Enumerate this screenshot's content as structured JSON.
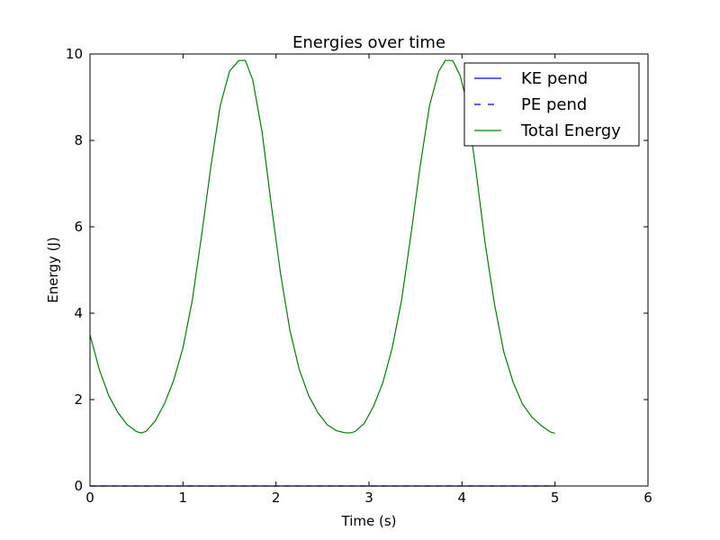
{
  "chart_data": {
    "type": "line",
    "title": "Energies over time",
    "xlabel": "Time (s)",
    "ylabel": "Energy (J)",
    "xlim": [
      0,
      6
    ],
    "ylim": [
      0,
      10
    ],
    "xticks": [
      "0",
      "1",
      "2",
      "3",
      "4",
      "5",
      "6"
    ],
    "yticks": [
      "0",
      "2",
      "4",
      "6",
      "8",
      "10"
    ],
    "grid": false,
    "legend_position": "top-right",
    "series": [
      {
        "name": "KE pend",
        "color": "#0000ff",
        "dash": "solid",
        "x": [
          0,
          5
        ],
        "y": [
          0,
          0
        ]
      },
      {
        "name": "PE pend",
        "color": "#0000ff",
        "dash": "dashed",
        "x": [
          0,
          5
        ],
        "y": [
          0,
          0
        ]
      },
      {
        "name": "Total Energy",
        "color": "#008000",
        "dash": "solid",
        "x": [
          0,
          0.1,
          0.2,
          0.3,
          0.4,
          0.5,
          0.55,
          0.6,
          0.7,
          0.8,
          0.9,
          1.0,
          1.1,
          1.2,
          1.3,
          1.4,
          1.5,
          1.6,
          1.67,
          1.75,
          1.85,
          1.95,
          2.05,
          2.15,
          2.25,
          2.35,
          2.45,
          2.55,
          2.65,
          2.75,
          2.8,
          2.85,
          2.95,
          3.05,
          3.15,
          3.25,
          3.35,
          3.45,
          3.55,
          3.65,
          3.75,
          3.82,
          3.9,
          3.98,
          4.05,
          4.15,
          4.25,
          4.35,
          4.45,
          4.55,
          4.65,
          4.75,
          4.85,
          4.95,
          5.0
        ],
        "y": [
          3.5,
          2.7,
          2.1,
          1.7,
          1.42,
          1.26,
          1.23,
          1.26,
          1.5,
          1.9,
          2.45,
          3.2,
          4.3,
          5.8,
          7.4,
          8.8,
          9.6,
          9.85,
          9.85,
          9.4,
          8.2,
          6.5,
          4.9,
          3.6,
          2.7,
          2.1,
          1.7,
          1.42,
          1.28,
          1.23,
          1.23,
          1.26,
          1.45,
          1.85,
          2.4,
          3.2,
          4.3,
          5.8,
          7.4,
          8.8,
          9.6,
          9.85,
          9.85,
          9.5,
          8.9,
          7.3,
          5.6,
          4.2,
          3.1,
          2.4,
          1.9,
          1.6,
          1.4,
          1.25,
          1.22
        ]
      }
    ]
  }
}
